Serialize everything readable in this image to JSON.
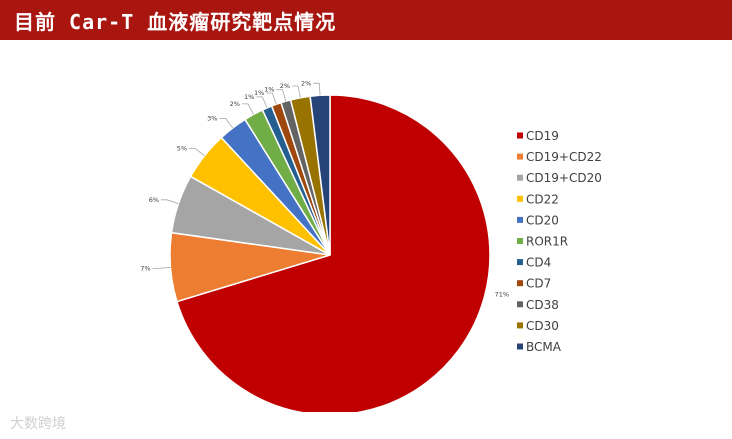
{
  "title": "目前 Car-T 血液瘤研究靶点情况",
  "watermark": "大数跨境",
  "colors": {
    "title_bar": "#a8160f"
  },
  "chart_data": {
    "type": "pie",
    "title": "",
    "legend_position": "right",
    "slices": [
      {
        "label": "CD19",
        "value": 71,
        "display": "71%",
        "color": "#c00000"
      },
      {
        "label": "CD19+CD22",
        "value": 7,
        "display": "7%",
        "color": "#ed7d31"
      },
      {
        "label": "CD19+CD20",
        "value": 6,
        "display": "6%",
        "color": "#a5a5a5"
      },
      {
        "label": "CD22",
        "value": 5,
        "display": "5%",
        "color": "#ffc000"
      },
      {
        "label": "CD20",
        "value": 3,
        "display": "3%",
        "color": "#4472c4"
      },
      {
        "label": "ROR1R",
        "value": 2,
        "display": "2%",
        "color": "#70ad47"
      },
      {
        "label": "CD4",
        "value": 1,
        "display": "1%",
        "color": "#255e91"
      },
      {
        "label": "CD7",
        "value": 1,
        "display": "1%",
        "color": "#9e480e"
      },
      {
        "label": "CD38",
        "value": 1,
        "display": "1%",
        "color": "#636363"
      },
      {
        "label": "CD30",
        "value": 2,
        "display": "2%",
        "color": "#997300"
      },
      {
        "label": "BCMA",
        "value": 2,
        "display": "2%",
        "color": "#264478"
      }
    ]
  }
}
